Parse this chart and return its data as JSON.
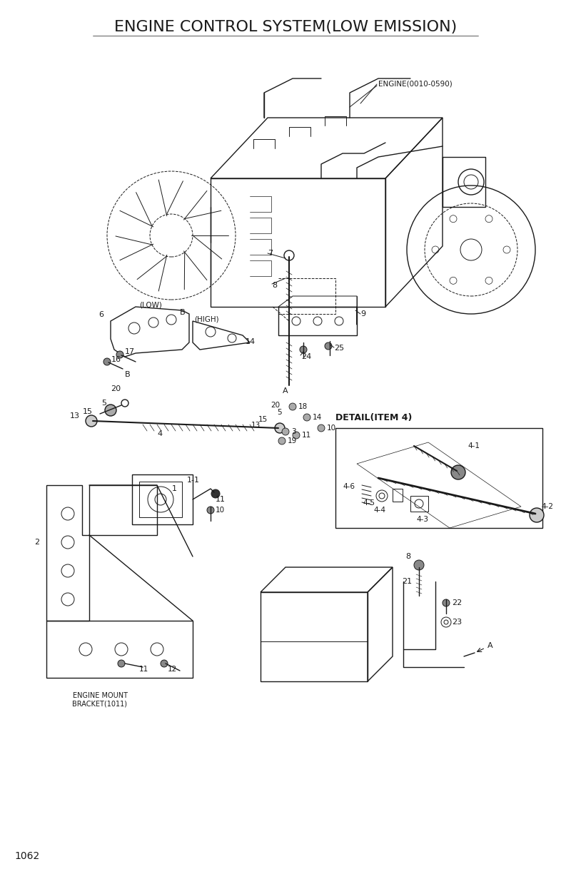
{
  "title": "ENGINE CONTROL SYSTEM(LOW EMISSION)",
  "page_number": "1062",
  "bg": "#ffffff",
  "lc": "#1a1a1a",
  "title_fs": 16,
  "label_fs": 8,
  "engine_label": "ENGINE(0010-0590)",
  "detail_label": "DETAIL(ITEM 4)",
  "mount_label": "ENGINE MOUNT\nBRACKET(1011)"
}
